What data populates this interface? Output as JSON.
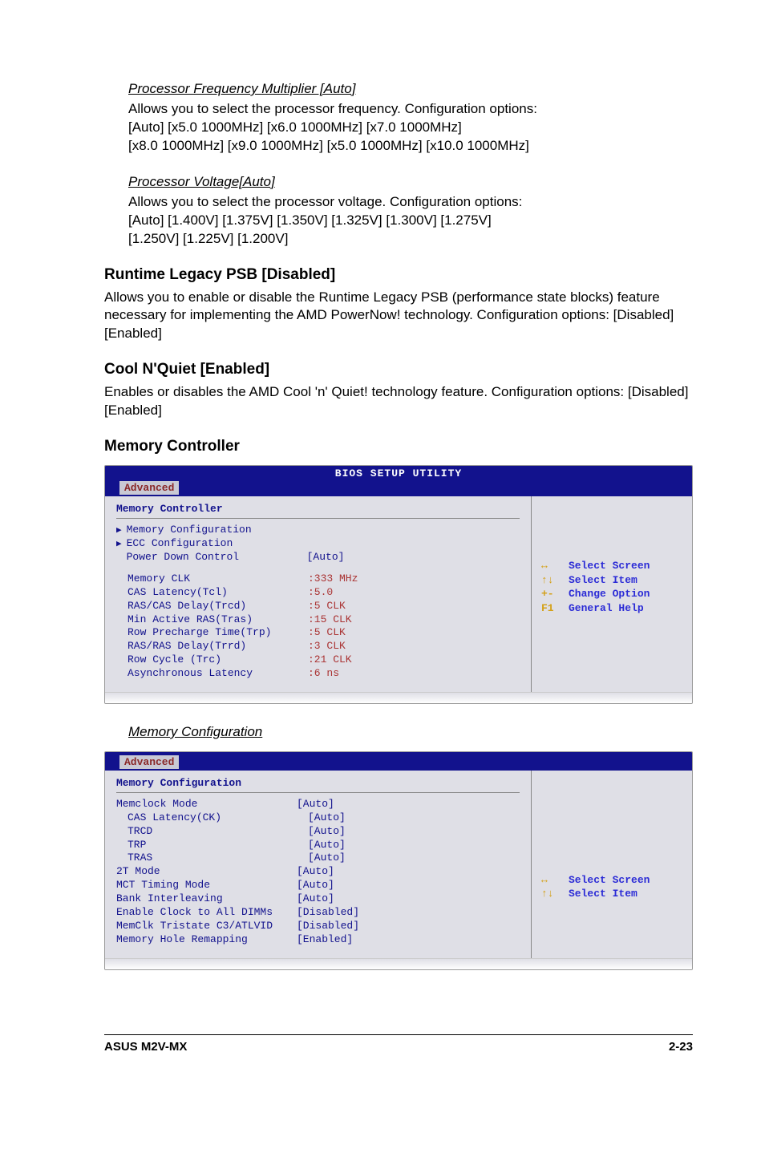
{
  "proc_freq": {
    "heading": "Processor Frequency Multiplier [Auto]",
    "line1": "Allows you to select the processor frequency. Configuration options:",
    "line2": "[Auto] [x5.0 1000MHz] [x6.0 1000MHz] [x7.0 1000MHz]",
    "line3": "[x8.0 1000MHz] [x9.0 1000MHz] [x5.0 1000MHz] [x10.0 1000MHz]"
  },
  "proc_volt": {
    "heading": "Processor Voltage[Auto]",
    "line1": "Allows you to select the processor voltage. Configuration options:",
    "line2": "[Auto] [1.400V] [1.375V] [1.350V] [1.325V] [1.300V] [1.275V]",
    "line3": "[1.250V] [1.225V] [1.200V]"
  },
  "runtime_psb": {
    "heading": "Runtime Legacy PSB [Disabled]",
    "body": "Allows you to enable or disable the Runtime Legacy PSB (performance state blocks) feature necessary for implementing the AMD PowerNow! technology. Configuration options: [Disabled] [Enabled]"
  },
  "cool_quiet": {
    "heading": "Cool N'Quiet [Enabled]",
    "body": "Enables or disables the AMD Cool 'n' Quiet! technology feature. Configuration options: [Disabled] [Enabled]"
  },
  "mem_ctrl_heading": "Memory Controller",
  "bios_title": "BIOS SETUP UTILITY",
  "tab_advanced": "Advanced",
  "bios1": {
    "title": "Memory Controller",
    "rows": [
      {
        "label": "Memory Configuration",
        "value": "",
        "arrow": true
      },
      {
        "label": "ECC Configuration",
        "value": "",
        "arrow": true
      },
      {
        "label": "Power Down Control",
        "value": "[Auto]",
        "arrow": false
      }
    ],
    "info": [
      {
        "label": "Memory CLK",
        "value": ":333 MHz"
      },
      {
        "label": "CAS Latency(Tcl)",
        "value": ":5.0"
      },
      {
        "label": "RAS/CAS Delay(Trcd)",
        "value": ":5 CLK"
      },
      {
        "label": "Min Active RAS(Tras)",
        "value": ":15 CLK"
      },
      {
        "label": "Row Precharge Time(Trp)",
        "value": ":5 CLK"
      },
      {
        "label": "RAS/RAS Delay(Trrd)",
        "value": ":3 CLK"
      },
      {
        "label": "Row Cycle (Trc)",
        "value": ":21 CLK"
      },
      {
        "label": "Asynchronous Latency",
        "value": ":6 ns"
      }
    ],
    "help": [
      {
        "key": "↔",
        "text": "Select Screen"
      },
      {
        "key": "↑↓",
        "text": "Select Item"
      },
      {
        "key": "+-",
        "text": "Change Option"
      },
      {
        "key": "F1",
        "text": "General Help"
      }
    ]
  },
  "mem_config_link": "Memory Configuration",
  "bios2": {
    "title": "Memory Configuration",
    "rows": [
      {
        "label": "Memclock Mode",
        "value": "[Auto]",
        "sub": false
      },
      {
        "label": "CAS Latency(CK)",
        "value": "[Auto]",
        "sub": true
      },
      {
        "label": "TRCD",
        "value": "[Auto]",
        "sub": true
      },
      {
        "label": "TRP",
        "value": "[Auto]",
        "sub": true
      },
      {
        "label": "TRAS",
        "value": "[Auto]",
        "sub": true
      },
      {
        "label": "2T Mode",
        "value": "[Auto]",
        "sub": false
      },
      {
        "label": "MCT Timing Mode",
        "value": "[Auto]",
        "sub": false
      },
      {
        "label": "Bank Interleaving",
        "value": "[Auto]",
        "sub": false
      },
      {
        "label": "Enable Clock to All DIMMs",
        "value": "[Disabled]",
        "sub": false
      },
      {
        "label": "MemClk Tristate C3/ATLVID",
        "value": "[Disabled]",
        "sub": false
      },
      {
        "label": "Memory Hole Remapping",
        "value": "[Enabled]",
        "sub": false
      }
    ],
    "help": [
      {
        "key": "↔",
        "text": "Select Screen"
      },
      {
        "key": "↑↓",
        "text": "Select Item"
      }
    ]
  },
  "footer": {
    "left": "ASUS M2V-MX",
    "right": "2-23"
  }
}
